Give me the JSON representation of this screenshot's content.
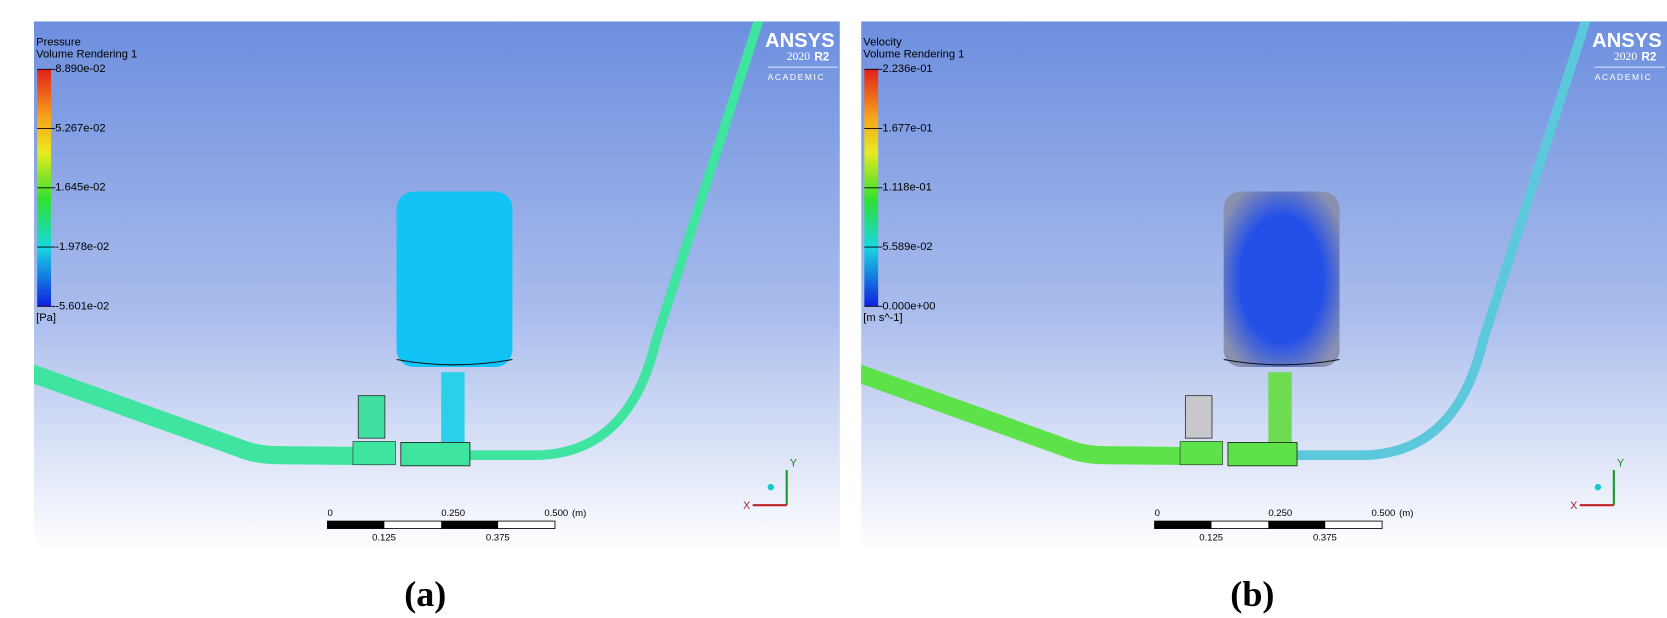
{
  "panels": [
    {
      "label": "(a)",
      "legend": {
        "title": "Pressure",
        "subtitle": "Volume Rendering 1",
        "ticks": [
          "8.890e-02",
          "5.267e-02",
          "1.645e-02",
          "-1.978e-02",
          "-5.601e-02"
        ],
        "unit": "[Pa]"
      },
      "scale": {
        "top": [
          "0",
          "0.250",
          "0.500"
        ],
        "bottom": [
          "0.125",
          "0.375"
        ],
        "unit": "(m)"
      },
      "logo": {
        "brand": "ANSYS",
        "version": "2020",
        "release": "R2",
        "edition": "ACADEMIC"
      },
      "axes": {
        "x": "X",
        "y": "Y"
      }
    },
    {
      "label": "(b)",
      "legend": {
        "title": "Velocity",
        "subtitle": "Volume Rendering 1",
        "ticks": [
          "2.236e-01",
          "1.677e-01",
          "1.118e-01",
          "5.589e-02",
          "0.000e+00"
        ],
        "unit": "[m s^-1]"
      },
      "scale": {
        "top": [
          "0",
          "0.250",
          "0.500"
        ],
        "bottom": [
          "0.125",
          "0.375"
        ],
        "unit": "(m)"
      },
      "logo": {
        "brand": "ANSYS",
        "version": "2020",
        "release": "R2",
        "edition": "ACADEMIC"
      },
      "axes": {
        "x": "X",
        "y": "Y"
      }
    }
  ]
}
